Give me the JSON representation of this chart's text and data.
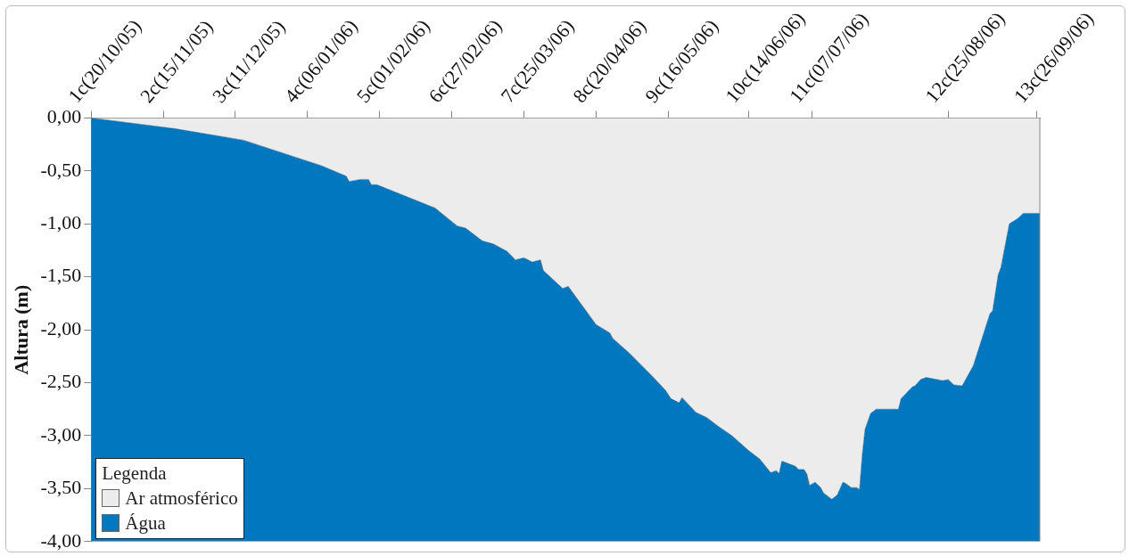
{
  "chart_data": {
    "type": "area",
    "stacked": true,
    "ylabel": "Altura (m)",
    "legend_title": "Legenda",
    "legend": "bottom left",
    "grid": false,
    "xlim": [
      "2005-10-20",
      "2006-09-27"
    ],
    "xticks": [
      {
        "value": "2005-10-20",
        "label": "1c(20/10/05)"
      },
      {
        "value": "2005-11-15",
        "label": "2c(15/11/05)"
      },
      {
        "value": "2005-12-11",
        "label": "3c(11/12/05)"
      },
      {
        "value": "2006-01-06",
        "label": "4c(06/01/06)"
      },
      {
        "value": "2006-02-01",
        "label": "5c(01/02/06)"
      },
      {
        "value": "2006-02-27",
        "label": "6c(27/02/06)"
      },
      {
        "value": "2006-03-25",
        "label": "7c(25/03/06)"
      },
      {
        "value": "2006-04-20",
        "label": "8c(20/04/06)"
      },
      {
        "value": "2006-05-16",
        "label": "9c(16/05/06)"
      },
      {
        "value": "2006-06-14",
        "label": "10c(14/06/06)"
      },
      {
        "value": "2006-07-07",
        "label": "11c(07/07/06)"
      },
      {
        "value": "2006-08-25",
        "label": "12c(25/08/06)"
      },
      {
        "value": "2006-09-26",
        "label": "13c(26/09/06)"
      }
    ],
    "ylim": [
      -4,
      0
    ],
    "yticks": [
      {
        "value": 0,
        "label": "0,00"
      },
      {
        "value": -0.5,
        "label": "-0,50"
      },
      {
        "value": -1,
        "label": "-1,00"
      },
      {
        "value": -1.5,
        "label": "-1,50"
      },
      {
        "value": -2,
        "label": "-2,00"
      },
      {
        "value": -2.5,
        "label": "-2,50"
      },
      {
        "value": -3,
        "label": "-3,00"
      },
      {
        "value": -3.5,
        "label": "-3,50"
      },
      {
        "value": -4,
        "label": "-4,00"
      }
    ],
    "x": [
      "2005-10-20",
      "2005-11-19",
      "2005-12-14",
      "2006-01-11",
      "2006-01-20",
      "2006-01-21",
      "2006-01-25",
      "2006-01-28",
      "2006-01-29",
      "2006-01-31",
      "2006-02-21",
      "2006-03-01",
      "2006-03-04",
      "2006-03-10",
      "2006-03-14",
      "2006-03-19",
      "2006-03-22",
      "2006-03-25",
      "2006-03-28",
      "2006-03-31",
      "2006-04-01",
      "2006-04-08",
      "2006-04-10",
      "2006-04-15",
      "2006-04-20",
      "2006-04-25",
      "2006-04-26",
      "2006-05-02",
      "2006-05-10",
      "2006-05-15",
      "2006-05-17",
      "2006-05-20",
      "2006-05-21",
      "2006-05-26",
      "2006-05-30",
      "2006-06-03",
      "2006-06-08",
      "2006-06-14",
      "2006-06-18",
      "2006-06-22",
      "2006-06-24",
      "2006-06-25",
      "2006-06-26",
      "2006-06-29",
      "2006-07-01",
      "2006-07-02",
      "2006-07-04",
      "2006-07-05",
      "2006-07-06",
      "2006-07-08",
      "2006-07-10",
      "2006-07-11",
      "2006-07-13",
      "2006-07-14",
      "2006-07-16",
      "2006-07-18",
      "2006-07-19",
      "2006-07-21",
      "2006-07-23",
      "2006-07-24",
      "2006-07-25",
      "2006-07-26",
      "2006-07-28",
      "2006-07-30",
      "2006-08-07",
      "2006-08-08",
      "2006-08-12",
      "2006-08-13",
      "2006-08-15",
      "2006-08-17",
      "2006-08-19",
      "2006-08-23",
      "2006-08-25",
      "2006-08-27",
      "2006-08-30",
      "2006-09-03",
      "2006-09-09",
      "2006-09-10",
      "2006-09-12",
      "2006-09-13",
      "2006-09-16",
      "2006-09-19",
      "2006-09-21",
      "2006-09-27"
    ],
    "series": [
      {
        "name": "Ar atmosférico",
        "color": "#ececec",
        "values": [
          0,
          -0.1,
          -0.21,
          -0.45,
          -0.55,
          -0.6,
          -0.58,
          -0.58,
          -0.63,
          -0.63,
          -0.85,
          -1.02,
          -1.04,
          -1.16,
          -1.19,
          -1.26,
          -1.34,
          -1.32,
          -1.36,
          -1.34,
          -1.44,
          -1.61,
          -1.59,
          -1.77,
          -1.95,
          -2.03,
          -2.08,
          -2.22,
          -2.43,
          -2.57,
          -2.65,
          -2.69,
          -2.64,
          -2.78,
          -2.83,
          -2.91,
          -3.0,
          -3.14,
          -3.22,
          -3.35,
          -3.33,
          -3.36,
          -3.24,
          -3.27,
          -3.29,
          -3.32,
          -3.32,
          -3.36,
          -3.47,
          -3.44,
          -3.49,
          -3.54,
          -3.58,
          -3.6,
          -3.56,
          -3.44,
          -3.45,
          -3.49,
          -3.49,
          -3.51,
          -3.18,
          -2.94,
          -2.79,
          -2.75,
          -2.75,
          -2.65,
          -2.54,
          -2.53,
          -2.47,
          -2.45,
          -2.46,
          -2.48,
          -2.47,
          -2.52,
          -2.53,
          -2.34,
          -1.85,
          -1.82,
          -1.48,
          -1.41,
          -1.0,
          -0.95,
          -0.9,
          -0.9
        ]
      },
      {
        "name": "Água",
        "color": "#0077bf",
        "values": [
          -4.0,
          -3.9,
          -3.79,
          -3.55,
          -3.45,
          -3.4,
          -3.42,
          -3.42,
          -3.37,
          -3.37,
          -3.15,
          -2.98,
          -2.96,
          -2.84,
          -2.81,
          -2.74,
          -2.66,
          -2.68,
          -2.64,
          -2.66,
          -2.56,
          -2.39,
          -2.41,
          -2.23,
          -2.05,
          -1.97,
          -1.92,
          -1.78,
          -1.57,
          -1.43,
          -1.35,
          -1.31,
          -1.36,
          -1.22,
          -1.17,
          -1.09,
          -1.0,
          -0.86,
          -0.78,
          -0.65,
          -0.67,
          -0.64,
          -0.76,
          -0.73,
          -0.71,
          -0.68,
          -0.68,
          -0.64,
          -0.53,
          -0.56,
          -0.51,
          -0.46,
          -0.42,
          -0.4,
          -0.44,
          -0.56,
          -0.55,
          -0.51,
          -0.51,
          -0.49,
          -0.82,
          -1.06,
          -1.21,
          -1.25,
          -1.25,
          -1.35,
          -1.46,
          -1.47,
          -1.53,
          -1.55,
          -1.54,
          -1.52,
          -1.53,
          -1.48,
          -1.47,
          -1.66,
          -2.15,
          -2.18,
          -2.52,
          -2.59,
          -3.0,
          -3.05,
          -3.1,
          -3.1
        ]
      }
    ]
  }
}
